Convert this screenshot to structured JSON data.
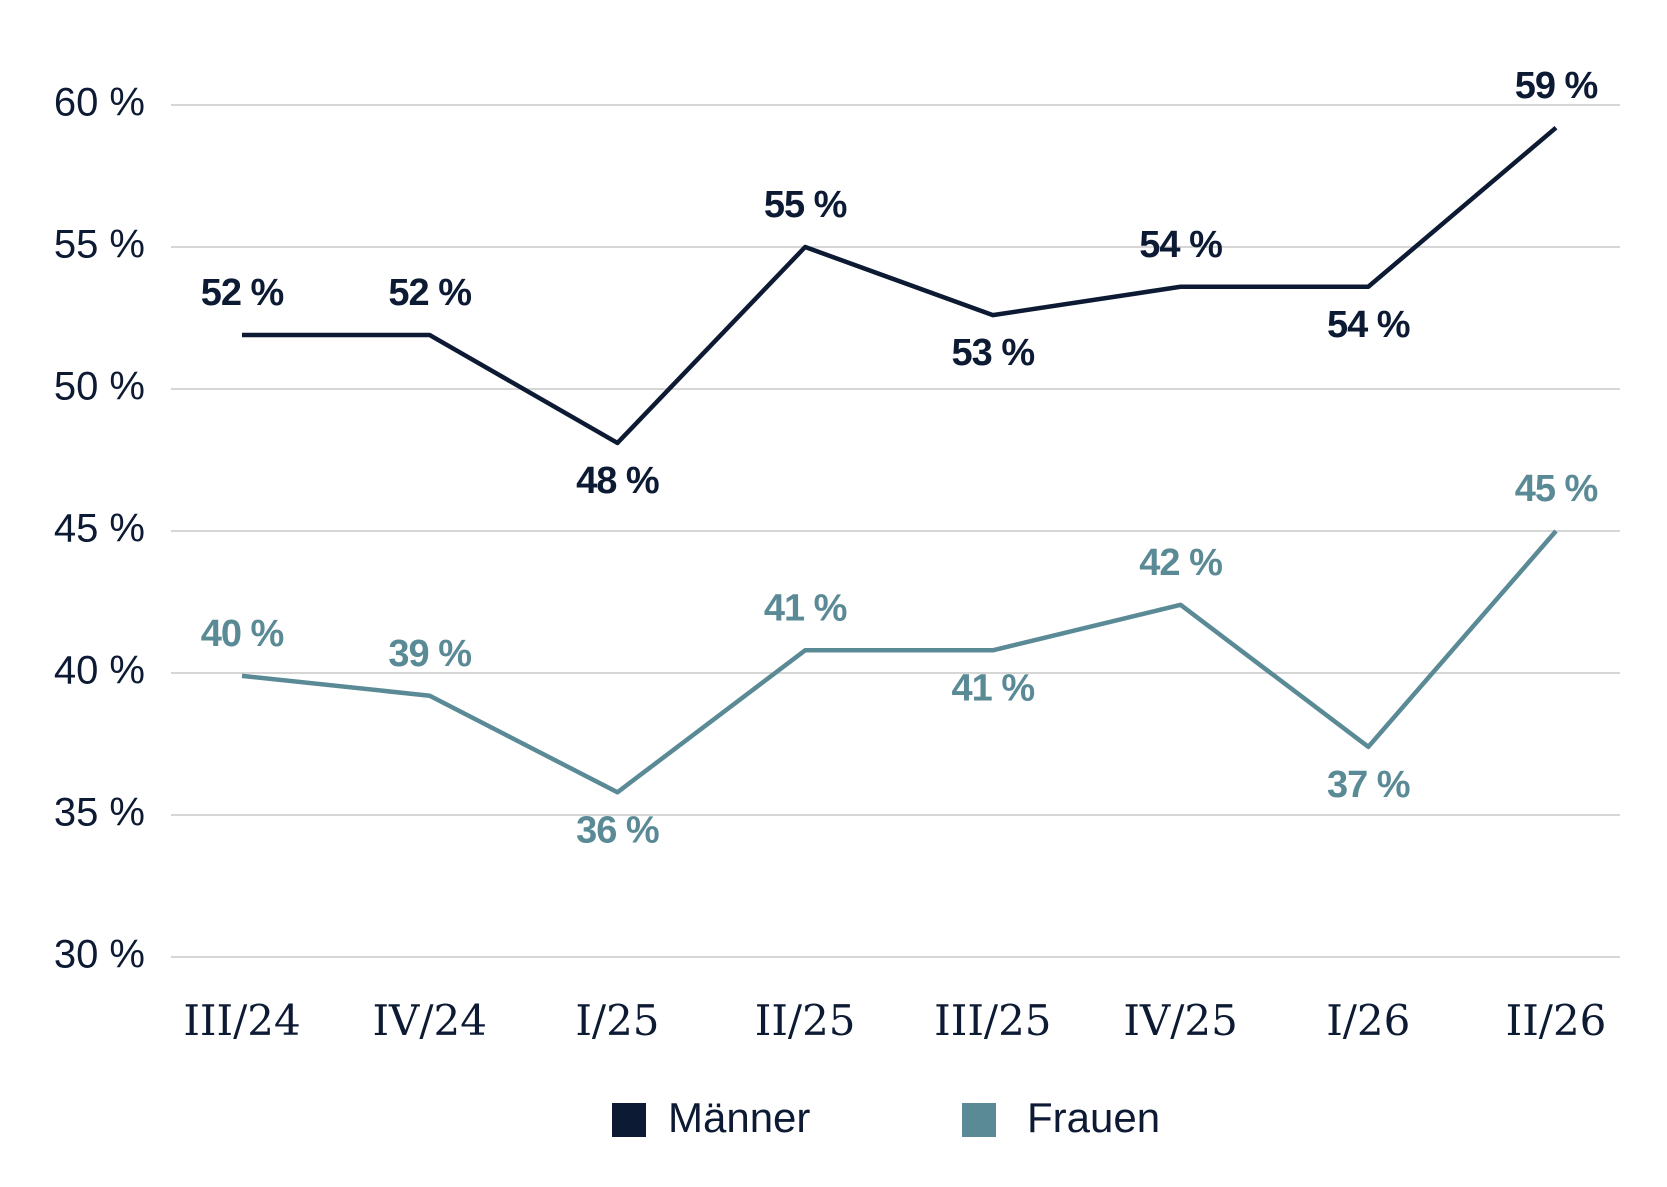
{
  "chart_data": {
    "type": "line",
    "categories": [
      "III/24",
      "IV/24",
      "I/25",
      "II/25",
      "III/25",
      "IV/25",
      "I/26",
      "II/26"
    ],
    "series": [
      {
        "name": "Männer",
        "color": "#0d1a33",
        "values": [
          51.9,
          51.9,
          48.1,
          55.0,
          52.6,
          53.6,
          53.6,
          59.2
        ],
        "value_labels": [
          "52 %",
          "52 %",
          "48 %",
          "55 %",
          "53 %",
          "54 %",
          "54 %",
          "59 %"
        ]
      },
      {
        "name": "Frauen",
        "color": "#5a8a96",
        "values": [
          39.9,
          39.2,
          35.8,
          40.8,
          40.8,
          42.4,
          37.4,
          45.0
        ],
        "value_labels": [
          "40 %",
          "39 %",
          "36 %",
          "41 %",
          "41 %",
          "42 %",
          "37 %",
          "45 %"
        ]
      }
    ],
    "ylim": [
      30,
      60
    ],
    "yticks": [
      {
        "value": 30,
        "label": "30 %"
      },
      {
        "value": 35,
        "label": "35 %"
      },
      {
        "value": 40,
        "label": "40 %"
      },
      {
        "value": 45,
        "label": "45 %"
      },
      {
        "value": 50,
        "label": "50 %"
      },
      {
        "value": 55,
        "label": "55 %"
      },
      {
        "value": 60,
        "label": "60 %"
      }
    ],
    "grid": true,
    "legend": "bottom"
  }
}
